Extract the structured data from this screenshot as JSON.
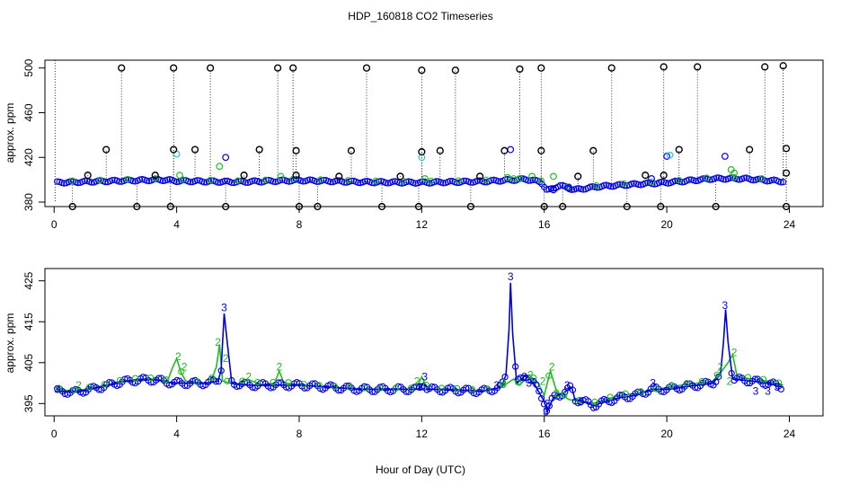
{
  "colors": {
    "black": "#000000",
    "green": "#22bb22",
    "blue": "#0000dd",
    "cyan": "#22c8d8"
  },
  "chart_data": [
    {
      "type": "scatter",
      "title": "HDP_160818  CO2 Timeseries",
      "xlabel": "",
      "ylabel": "approx. ppm",
      "xlim": [
        -0.3,
        25.1
      ],
      "ylim": [
        376,
        507
      ],
      "xticks": [
        0,
        4,
        8,
        12,
        16,
        20,
        24
      ],
      "yticks": [
        380,
        420,
        460,
        500
      ],
      "ytick_labels": [
        "380",
        "420",
        "460",
        "500"
      ],
      "blue_baseline": [
        [
          0.1,
          397.5
        ],
        [
          2.0,
          399
        ],
        [
          3.5,
          400
        ],
        [
          4.0,
          399
        ],
        [
          6.0,
          398
        ],
        [
          8.0,
          399.5
        ],
        [
          10.0,
          398
        ],
        [
          12.0,
          397.5
        ],
        [
          14.0,
          398.5
        ],
        [
          15.4,
          400.5
        ],
        [
          15.9,
          398
        ],
        [
          16.1,
          390
        ],
        [
          16.5,
          395
        ],
        [
          17.0,
          391
        ],
        [
          17.8,
          394
        ],
        [
          19.0,
          396
        ],
        [
          20.0,
          397.5
        ],
        [
          21.5,
          401
        ],
        [
          22.5,
          401
        ],
        [
          23.8,
          398.5
        ]
      ],
      "black_high": [
        [
          2.2,
          500
        ],
        [
          3.9,
          500
        ],
        [
          5.1,
          500
        ],
        [
          7.3,
          500
        ],
        [
          7.8,
          500
        ],
        [
          10.2,
          500
        ],
        [
          12.0,
          498
        ],
        [
          13.1,
          498
        ],
        [
          15.2,
          499
        ],
        [
          15.9,
          500
        ],
        [
          18.2,
          500
        ],
        [
          19.9,
          501
        ],
        [
          21.0,
          501
        ],
        [
          23.2,
          501
        ],
        [
          23.8,
          502
        ]
      ],
      "black_mid": [
        [
          1.7,
          427
        ],
        [
          3.9,
          427
        ],
        [
          4.6,
          427
        ],
        [
          6.7,
          427
        ],
        [
          7.9,
          426
        ],
        [
          9.7,
          426
        ],
        [
          12.0,
          425
        ],
        [
          12.6,
          426
        ],
        [
          14.7,
          426
        ],
        [
          15.9,
          426
        ],
        [
          17.6,
          426
        ],
        [
          20.4,
          427
        ],
        [
          22.7,
          427
        ],
        [
          23.9,
          428
        ]
      ],
      "black_low_mid": [
        [
          1.1,
          404
        ],
        [
          3.3,
          404
        ],
        [
          6.2,
          404
        ],
        [
          7.9,
          404
        ],
        [
          9.3,
          403
        ],
        [
          11.3,
          403
        ],
        [
          13.9,
          403
        ],
        [
          17.1,
          403
        ],
        [
          19.3,
          404
        ],
        [
          19.9,
          404
        ],
        [
          23.9,
          406
        ]
      ],
      "black_low": [
        [
          0.6,
          376
        ],
        [
          2.7,
          376
        ],
        [
          3.8,
          376
        ],
        [
          5.6,
          376
        ],
        [
          8.0,
          376
        ],
        [
          8.6,
          376
        ],
        [
          10.7,
          376
        ],
        [
          11.9,
          376
        ],
        [
          13.6,
          376
        ],
        [
          16.0,
          376
        ],
        [
          16.6,
          376
        ],
        [
          18.7,
          376
        ],
        [
          19.8,
          376
        ],
        [
          21.6,
          376
        ],
        [
          23.9,
          376
        ]
      ],
      "blue_extra": [
        [
          5.6,
          420
        ],
        [
          14.9,
          427
        ],
        [
          20.0,
          421
        ],
        [
          21.9,
          421
        ],
        [
          16.3,
          391
        ],
        [
          16.8,
          393
        ],
        [
          19.5,
          401
        ]
      ],
      "green_extra": [
        [
          4.1,
          404
        ],
        [
          5.4,
          412
        ],
        [
          7.4,
          403
        ],
        [
          12.1,
          401
        ],
        [
          15.2,
          401
        ],
        [
          16.3,
          403
        ],
        [
          22.1,
          409
        ],
        [
          22.2,
          406
        ],
        [
          14.8,
          402
        ],
        [
          15.6,
          403
        ]
      ],
      "cyan_extra": [
        [
          4.0,
          423
        ],
        [
          12.0,
          420
        ],
        [
          20.1,
          422
        ]
      ]
    },
    {
      "type": "line",
      "title": "",
      "xlabel": "Hour of Day (UTC)",
      "ylabel": "approx. ppm",
      "xlim": [
        -0.3,
        25.1
      ],
      "ylim": [
        392,
        428
      ],
      "xticks": [
        0,
        4,
        8,
        12,
        16,
        20,
        24
      ],
      "yticks": [
        395,
        405,
        415,
        425
      ],
      "ytick_labels": [
        "395",
        "405",
        "415",
        "425"
      ],
      "series": [
        {
          "name": "2",
          "color": "green",
          "points": [
            [
              0.1,
              398.5
            ],
            [
              0.7,
              398.0
            ],
            [
              1.2,
              398.8
            ],
            [
              1.7,
              399.5
            ],
            [
              2.2,
              400.5
            ],
            [
              2.8,
              401.0
            ],
            [
              3.3,
              401.0
            ],
            [
              3.7,
              400.5
            ],
            [
              3.85,
              403.5
            ],
            [
              4.0,
              406.0
            ],
            [
              4.15,
              402.5
            ],
            [
              4.3,
              400.5
            ],
            [
              4.7,
              400.0
            ],
            [
              5.1,
              400.0
            ],
            [
              5.3,
              404.0
            ],
            [
              5.4,
              409.5
            ],
            [
              5.5,
              400.5
            ],
            [
              6.0,
              399.5
            ],
            [
              6.3,
              401.0
            ],
            [
              6.8,
              399.5
            ],
            [
              7.2,
              400.0
            ],
            [
              7.35,
              403.0
            ],
            [
              7.5,
              400.0
            ],
            [
              8.1,
              399.5
            ],
            [
              9.0,
              399.0
            ],
            [
              10.0,
              398.5
            ],
            [
              11.0,
              398.5
            ],
            [
              11.8,
              398.5
            ],
            [
              12.0,
              401.5
            ],
            [
              12.2,
              398.5
            ],
            [
              13.0,
              398.5
            ],
            [
              14.0,
              398.0
            ],
            [
              14.6,
              399.0
            ],
            [
              15.0,
              401.0
            ],
            [
              15.2,
              399.5
            ],
            [
              15.5,
              402.0
            ],
            [
              15.8,
              400.0
            ],
            [
              16.0,
              397.0
            ],
            [
              16.2,
              403.0
            ],
            [
              16.4,
              398.0
            ],
            [
              16.8,
              396.0
            ],
            [
              17.2,
              395.5
            ],
            [
              17.6,
              395.0
            ],
            [
              18.0,
              396.0
            ],
            [
              18.5,
              397.0
            ],
            [
              19.0,
              397.5
            ],
            [
              19.5,
              398.0
            ],
            [
              20.0,
              399.0
            ],
            [
              20.5,
              399.5
            ],
            [
              21.0,
              400.0
            ],
            [
              21.5,
              400.5
            ],
            [
              21.8,
              403.0
            ],
            [
              22.0,
              405.0
            ],
            [
              22.15,
              407.0
            ],
            [
              22.3,
              401.5
            ],
            [
              22.8,
              401.0
            ],
            [
              23.3,
              400.5
            ],
            [
              23.8,
              399.5
            ]
          ],
          "labels": [
            [
              0.8,
              399.5
            ],
            [
              4.05,
              406.5
            ],
            [
              4.25,
              404.0
            ],
            [
              5.35,
              410.0
            ],
            [
              5.6,
              406.0
            ],
            [
              6.35,
              401.5
            ],
            [
              7.35,
              404.0
            ],
            [
              11.85,
              400.5
            ],
            [
              14.65,
              400.0
            ],
            [
              15.55,
              402.0
            ],
            [
              15.95,
              400.5
            ],
            [
              16.25,
              404.0
            ],
            [
              16.4,
              397.5
            ],
            [
              21.75,
              404.0
            ],
            [
              22.2,
              407.5
            ],
            [
              22.05,
              400.5
            ]
          ]
        },
        {
          "name": "3",
          "color": "blue",
          "points": [
            [
              0.1,
              398.0
            ],
            [
              0.7,
              397.8
            ],
            [
              1.2,
              398.5
            ],
            [
              1.7,
              399.3
            ],
            [
              2.2,
              400.3
            ],
            [
              2.8,
              400.8
            ],
            [
              3.3,
              400.8
            ],
            [
              3.9,
              400.0
            ],
            [
              4.3,
              400.0
            ],
            [
              5.0,
              400.0
            ],
            [
              5.35,
              400.5
            ],
            [
              5.45,
              403.0
            ],
            [
              5.55,
              417.0
            ],
            [
              5.65,
              410.0
            ],
            [
              5.8,
              400.0
            ],
            [
              6.3,
              399.5
            ],
            [
              7.0,
              399.5
            ],
            [
              8.0,
              399.5
            ],
            [
              9.0,
              399.0
            ],
            [
              10.0,
              398.5
            ],
            [
              11.0,
              398.5
            ],
            [
              11.9,
              398.5
            ],
            [
              12.05,
              400.0
            ],
            [
              12.2,
              398.5
            ],
            [
              13.0,
              398.3
            ],
            [
              14.0,
              398.0
            ],
            [
              14.6,
              399.0
            ],
            [
              14.75,
              402.0
            ],
            [
              14.85,
              413.0
            ],
            [
              14.9,
              424.5
            ],
            [
              14.97,
              412.0
            ],
            [
              15.1,
              400.0
            ],
            [
              15.4,
              402.0
            ],
            [
              15.7,
              399.5
            ],
            [
              16.0,
              395.5
            ],
            [
              16.1,
              393.0
            ],
            [
              16.3,
              396.5
            ],
            [
              16.6,
              397.5
            ],
            [
              16.9,
              399.0
            ],
            [
              17.0,
              396.0
            ],
            [
              17.3,
              395.5
            ],
            [
              17.6,
              394.5
            ],
            [
              18.0,
              395.5
            ],
            [
              18.5,
              396.5
            ],
            [
              19.0,
              397.0
            ],
            [
              19.5,
              398.5
            ],
            [
              20.0,
              398.5
            ],
            [
              20.5,
              399.0
            ],
            [
              21.0,
              399.5
            ],
            [
              21.5,
              400.0
            ],
            [
              21.75,
              402.0
            ],
            [
              21.85,
              410.0
            ],
            [
              21.92,
              418.0
            ],
            [
              22.0,
              410.0
            ],
            [
              22.15,
              401.0
            ],
            [
              22.8,
              400.5
            ],
            [
              23.3,
              400.0
            ],
            [
              23.8,
              399.0
            ]
          ],
          "labels": [
            [
              0.1,
              398.5
            ],
            [
              5.55,
              418.5
            ],
            [
              11.95,
              399.0
            ],
            [
              12.1,
              401.5
            ],
            [
              14.45,
              399.5
            ],
            [
              14.9,
              426.0
            ],
            [
              15.35,
              401.5
            ],
            [
              15.5,
              400.0
            ],
            [
              16.1,
              395.0
            ],
            [
              16.05,
              393.0
            ],
            [
              16.75,
              399.5
            ],
            [
              17.2,
              395.5
            ],
            [
              19.55,
              400.0
            ],
            [
              21.9,
              419.0
            ],
            [
              22.9,
              398.0
            ],
            [
              23.3,
              398.0
            ],
            [
              23.6,
              399.0
            ]
          ]
        }
      ]
    }
  ]
}
